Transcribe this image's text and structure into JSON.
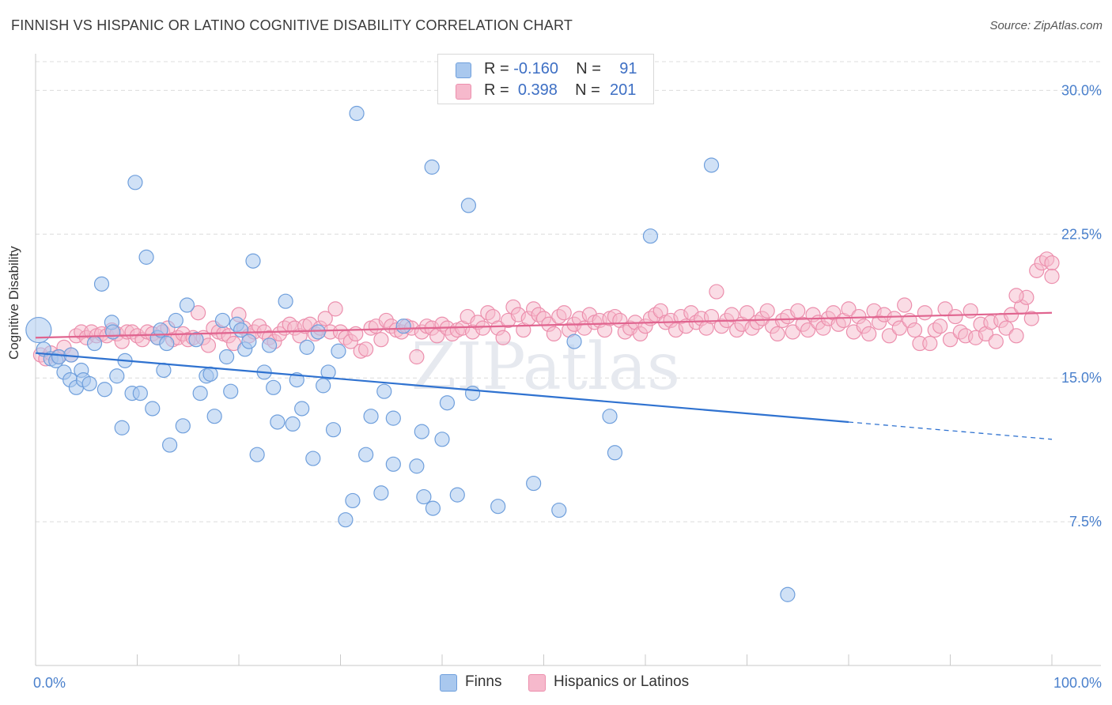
{
  "title": "FINNISH VS HISPANIC OR LATINO COGNITIVE DISABILITY CORRELATION CHART",
  "source": "Source: ZipAtlas.com",
  "watermark": "ZIPatlas",
  "legend_top": [
    {
      "r_label": "R =",
      "r_value": "-0.160",
      "n_label": "N =",
      "n_value": "91"
    },
    {
      "r_label": "R =",
      "r_value": "0.398",
      "n_label": "N =",
      "n_value": "201"
    }
  ],
  "colors": {
    "finns_fill": "#a9c8ee",
    "finns_stroke": "#6f9fdc",
    "finns_line": "#2f72d0",
    "hisp_fill": "#f6b9cc",
    "hisp_stroke": "#ec8fad",
    "hisp_line": "#e0648f",
    "tick_text": "#4a80cc",
    "grid": "#dcdcdc"
  },
  "chart_data": {
    "type": "scatter",
    "title": "FINNISH VS HISPANIC OR LATINO COGNITIVE DISABILITY CORRELATION CHART",
    "xlabel": "",
    "ylabel": "Cognitive Disability",
    "xlim": [
      0,
      100
    ],
    "ylim": [
      0,
      31.5
    ],
    "x_tick_labels": [
      "0.0%",
      "100.0%"
    ],
    "y_ticks": [
      7.5,
      15.0,
      22.5,
      30.0
    ],
    "y_tick_labels": [
      "7.5%",
      "15.0%",
      "22.5%",
      "30.0%"
    ],
    "grid": "horizontal dashed",
    "legend": "bottom-center",
    "series": [
      {
        "name": "Finns",
        "r": -0.16,
        "n": 91,
        "trend": {
          "x0": 0,
          "y0": 16.3,
          "x1": 100,
          "y1": 11.8,
          "solid_until_x": 80
        },
        "points": [
          [
            0.3,
            17.5
          ],
          [
            0.8,
            16.5
          ],
          [
            1.5,
            16.0
          ],
          [
            2.0,
            15.9
          ],
          [
            2.3,
            16.1
          ],
          [
            2.8,
            15.3
          ],
          [
            3.5,
            16.2
          ],
          [
            3.4,
            14.9
          ],
          [
            4.0,
            14.5
          ],
          [
            4.5,
            15.4
          ],
          [
            4.7,
            14.9
          ],
          [
            5.3,
            14.7
          ],
          [
            5.8,
            16.8
          ],
          [
            6.5,
            19.9
          ],
          [
            6.8,
            14.4
          ],
          [
            7.5,
            17.9
          ],
          [
            7.6,
            17.4
          ],
          [
            8.0,
            15.1
          ],
          [
            8.5,
            12.4
          ],
          [
            8.8,
            15.9
          ],
          [
            9.5,
            14.2
          ],
          [
            9.8,
            25.2
          ],
          [
            10.3,
            14.2
          ],
          [
            10.9,
            21.3
          ],
          [
            11.5,
            13.4
          ],
          [
            12.0,
            17.1
          ],
          [
            12.3,
            17.5
          ],
          [
            12.6,
            15.4
          ],
          [
            12.9,
            16.8
          ],
          [
            13.2,
            11.5
          ],
          [
            13.8,
            18.0
          ],
          [
            14.5,
            12.5
          ],
          [
            14.9,
            18.8
          ],
          [
            15.8,
            17.0
          ],
          [
            16.2,
            14.2
          ],
          [
            16.8,
            15.1
          ],
          [
            17.2,
            15.2
          ],
          [
            17.6,
            13.0
          ],
          [
            18.4,
            18.0
          ],
          [
            18.8,
            16.1
          ],
          [
            19.2,
            14.3
          ],
          [
            19.8,
            17.8
          ],
          [
            20.2,
            17.5
          ],
          [
            20.6,
            16.5
          ],
          [
            21.0,
            16.9
          ],
          [
            21.4,
            21.1
          ],
          [
            21.8,
            11.0
          ],
          [
            22.5,
            15.3
          ],
          [
            23.0,
            16.7
          ],
          [
            23.4,
            14.5
          ],
          [
            23.8,
            12.7
          ],
          [
            24.6,
            19.0
          ],
          [
            25.3,
            12.6
          ],
          [
            25.7,
            14.9
          ],
          [
            26.2,
            13.4
          ],
          [
            26.7,
            16.6
          ],
          [
            27.3,
            10.8
          ],
          [
            27.8,
            17.4
          ],
          [
            28.3,
            14.6
          ],
          [
            28.8,
            15.3
          ],
          [
            29.3,
            12.3
          ],
          [
            29.8,
            16.4
          ],
          [
            30.5,
            7.6
          ],
          [
            31.2,
            8.6
          ],
          [
            31.6,
            28.8
          ],
          [
            32.5,
            11.0
          ],
          [
            33.0,
            13.0
          ],
          [
            34.0,
            9.0
          ],
          [
            34.3,
            14.3
          ],
          [
            35.2,
            12.9
          ],
          [
            35.2,
            10.5
          ],
          [
            36.2,
            17.7
          ],
          [
            37.5,
            10.4
          ],
          [
            38.0,
            12.2
          ],
          [
            38.2,
            8.8
          ],
          [
            39.1,
            8.2
          ],
          [
            39.0,
            26.0
          ],
          [
            40.0,
            11.8
          ],
          [
            40.5,
            13.7
          ],
          [
            41.5,
            8.9
          ],
          [
            42.6,
            24.0
          ],
          [
            43.0,
            14.2
          ],
          [
            45.5,
            8.3
          ],
          [
            49.0,
            9.5
          ],
          [
            51.5,
            8.1
          ],
          [
            53.0,
            16.9
          ],
          [
            56.5,
            13.0
          ],
          [
            57.0,
            11.1
          ],
          [
            60.5,
            22.4
          ],
          [
            66.5,
            26.1
          ],
          [
            74.0,
            3.7
          ]
        ]
      },
      {
        "name": "Hispanics or Latinos",
        "r": 0.398,
        "n": 201,
        "trend": {
          "x0": 0,
          "y0": 17.1,
          "x1": 100,
          "y1": 18.4
        },
        "points": [
          [
            0.5,
            16.2
          ],
          [
            1.0,
            16.0
          ],
          [
            1.5,
            16.3
          ],
          [
            2.2,
            16.1
          ],
          [
            2.8,
            16.6
          ],
          [
            3.5,
            16.2
          ],
          [
            4.0,
            17.2
          ],
          [
            4.5,
            17.4
          ],
          [
            5.0,
            17.1
          ],
          [
            5.5,
            17.4
          ],
          [
            6.0,
            17.2
          ],
          [
            6.5,
            17.3
          ],
          [
            7.0,
            17.2
          ],
          [
            7.5,
            17.5
          ],
          [
            8.0,
            17.3
          ],
          [
            8.5,
            16.9
          ],
          [
            9.0,
            17.4
          ],
          [
            9.5,
            17.4
          ],
          [
            10.0,
            17.2
          ],
          [
            10.5,
            17.0
          ],
          [
            11.0,
            17.4
          ],
          [
            11.5,
            17.3
          ],
          [
            12.0,
            17.1
          ],
          [
            12.5,
            17.4
          ],
          [
            13.0,
            17.6
          ],
          [
            13.5,
            17.0
          ],
          [
            14.0,
            17.1
          ],
          [
            14.5,
            17.3
          ],
          [
            15.0,
            17.0
          ],
          [
            15.5,
            17.1
          ],
          [
            16.0,
            18.4
          ],
          [
            16.5,
            17.1
          ],
          [
            17.0,
            16.7
          ],
          [
            17.5,
            17.6
          ],
          [
            18.0,
            17.4
          ],
          [
            18.5,
            17.3
          ],
          [
            19.0,
            17.2
          ],
          [
            19.5,
            16.8
          ],
          [
            20.0,
            18.3
          ],
          [
            20.5,
            17.6
          ],
          [
            21.0,
            17.2
          ],
          [
            21.5,
            17.4
          ],
          [
            22.0,
            17.7
          ],
          [
            22.5,
            17.4
          ],
          [
            23.0,
            17.1
          ],
          [
            23.5,
            16.9
          ],
          [
            24.0,
            17.3
          ],
          [
            24.5,
            17.6
          ],
          [
            25.0,
            17.8
          ],
          [
            25.5,
            17.6
          ],
          [
            26.0,
            17.2
          ],
          [
            26.5,
            17.7
          ],
          [
            27.0,
            17.8
          ],
          [
            27.5,
            17.3
          ],
          [
            28.0,
            17.6
          ],
          [
            28.5,
            18.1
          ],
          [
            29.0,
            17.4
          ],
          [
            29.5,
            18.6
          ],
          [
            30.0,
            17.4
          ],
          [
            30.5,
            17.1
          ],
          [
            31.0,
            16.9
          ],
          [
            31.5,
            17.3
          ],
          [
            32.0,
            16.4
          ],
          [
            32.5,
            16.5
          ],
          [
            33.0,
            17.6
          ],
          [
            33.5,
            17.7
          ],
          [
            34.0,
            17.0
          ],
          [
            34.5,
            18.0
          ],
          [
            35.0,
            17.7
          ],
          [
            35.5,
            17.5
          ],
          [
            36.0,
            17.4
          ],
          [
            36.5,
            17.7
          ],
          [
            37.0,
            17.6
          ],
          [
            37.5,
            16.1
          ],
          [
            38.0,
            17.4
          ],
          [
            38.5,
            17.7
          ],
          [
            39.0,
            17.6
          ],
          [
            39.5,
            17.2
          ],
          [
            40.0,
            17.8
          ],
          [
            40.5,
            17.6
          ],
          [
            41.0,
            17.3
          ],
          [
            41.5,
            17.5
          ],
          [
            42.0,
            17.6
          ],
          [
            42.5,
            18.2
          ],
          [
            43.0,
            17.4
          ],
          [
            43.5,
            17.9
          ],
          [
            44.0,
            17.6
          ],
          [
            44.5,
            18.4
          ],
          [
            45.0,
            18.2
          ],
          [
            45.5,
            17.6
          ],
          [
            46.0,
            17.1
          ],
          [
            46.5,
            18.0
          ],
          [
            47.0,
            18.7
          ],
          [
            47.5,
            18.3
          ],
          [
            48.0,
            17.5
          ],
          [
            48.5,
            18.1
          ],
          [
            49.0,
            18.6
          ],
          [
            49.5,
            18.3
          ],
          [
            50.0,
            18.1
          ],
          [
            50.5,
            17.8
          ],
          [
            51.0,
            17.3
          ],
          [
            51.5,
            18.2
          ],
          [
            52.0,
            18.4
          ],
          [
            52.5,
            17.5
          ],
          [
            53.0,
            17.8
          ],
          [
            53.5,
            18.1
          ],
          [
            54.0,
            17.6
          ],
          [
            54.5,
            18.3
          ],
          [
            55.0,
            17.9
          ],
          [
            55.5,
            18.0
          ],
          [
            56.0,
            17.5
          ],
          [
            56.5,
            18.1
          ],
          [
            57.0,
            18.2
          ],
          [
            57.5,
            18.0
          ],
          [
            58.0,
            17.4
          ],
          [
            58.5,
            17.6
          ],
          [
            59.0,
            17.9
          ],
          [
            59.5,
            17.3
          ],
          [
            60.0,
            17.7
          ],
          [
            60.5,
            18.1
          ],
          [
            61.0,
            18.3
          ],
          [
            61.5,
            18.5
          ],
          [
            62.0,
            17.9
          ],
          [
            62.5,
            18.0
          ],
          [
            63.0,
            17.5
          ],
          [
            63.5,
            18.2
          ],
          [
            64.0,
            17.7
          ],
          [
            64.5,
            18.4
          ],
          [
            65.0,
            17.9
          ],
          [
            65.5,
            18.1
          ],
          [
            66.0,
            17.6
          ],
          [
            66.5,
            18.2
          ],
          [
            67.0,
            19.5
          ],
          [
            67.5,
            17.7
          ],
          [
            68.0,
            18.0
          ],
          [
            68.5,
            18.3
          ],
          [
            69.0,
            17.5
          ],
          [
            69.5,
            17.8
          ],
          [
            70.0,
            18.4
          ],
          [
            70.5,
            17.6
          ],
          [
            71.0,
            17.9
          ],
          [
            71.5,
            18.1
          ],
          [
            72.0,
            18.5
          ],
          [
            72.5,
            17.7
          ],
          [
            73.0,
            17.3
          ],
          [
            73.5,
            18.0
          ],
          [
            74.0,
            18.2
          ],
          [
            74.5,
            17.4
          ],
          [
            75.0,
            18.5
          ],
          [
            75.5,
            17.8
          ],
          [
            76.0,
            17.5
          ],
          [
            76.5,
            18.3
          ],
          [
            77.0,
            17.9
          ],
          [
            77.5,
            17.6
          ],
          [
            78.0,
            18.1
          ],
          [
            78.5,
            18.4
          ],
          [
            79.0,
            17.8
          ],
          [
            79.5,
            18.0
          ],
          [
            80.0,
            18.6
          ],
          [
            80.5,
            17.4
          ],
          [
            81.0,
            18.2
          ],
          [
            81.5,
            17.7
          ],
          [
            82.0,
            17.3
          ],
          [
            82.5,
            18.5
          ],
          [
            83.0,
            17.9
          ],
          [
            83.5,
            18.3
          ],
          [
            84.0,
            17.2
          ],
          [
            84.5,
            18.1
          ],
          [
            85.0,
            17.6
          ],
          [
            85.5,
            18.8
          ],
          [
            86.0,
            18.0
          ],
          [
            86.5,
            17.5
          ],
          [
            87.0,
            16.8
          ],
          [
            87.5,
            18.4
          ],
          [
            88.0,
            16.8
          ],
          [
            88.5,
            17.5
          ],
          [
            89.0,
            17.7
          ],
          [
            89.5,
            18.6
          ],
          [
            90.0,
            17.0
          ],
          [
            90.5,
            18.2
          ],
          [
            91.0,
            17.4
          ],
          [
            91.5,
            17.2
          ],
          [
            92.0,
            18.5
          ],
          [
            92.5,
            17.1
          ],
          [
            93.0,
            17.8
          ],
          [
            93.5,
            17.3
          ],
          [
            94.0,
            17.9
          ],
          [
            94.5,
            16.9
          ],
          [
            95.0,
            18.0
          ],
          [
            95.5,
            17.6
          ],
          [
            96.0,
            18.3
          ],
          [
            96.5,
            17.2
          ],
          [
            97.0,
            18.7
          ],
          [
            97.5,
            19.2
          ],
          [
            98.0,
            18.1
          ],
          [
            98.5,
            20.6
          ],
          [
            99.0,
            21.0
          ],
          [
            99.5,
            21.2
          ],
          [
            100.0,
            21.0
          ],
          [
            100.0,
            20.3
          ],
          [
            96.5,
            19.3
          ]
        ]
      }
    ]
  },
  "legend_bottom": [
    {
      "label": "Finns"
    },
    {
      "label": "Hispanics or Latinos"
    }
  ]
}
